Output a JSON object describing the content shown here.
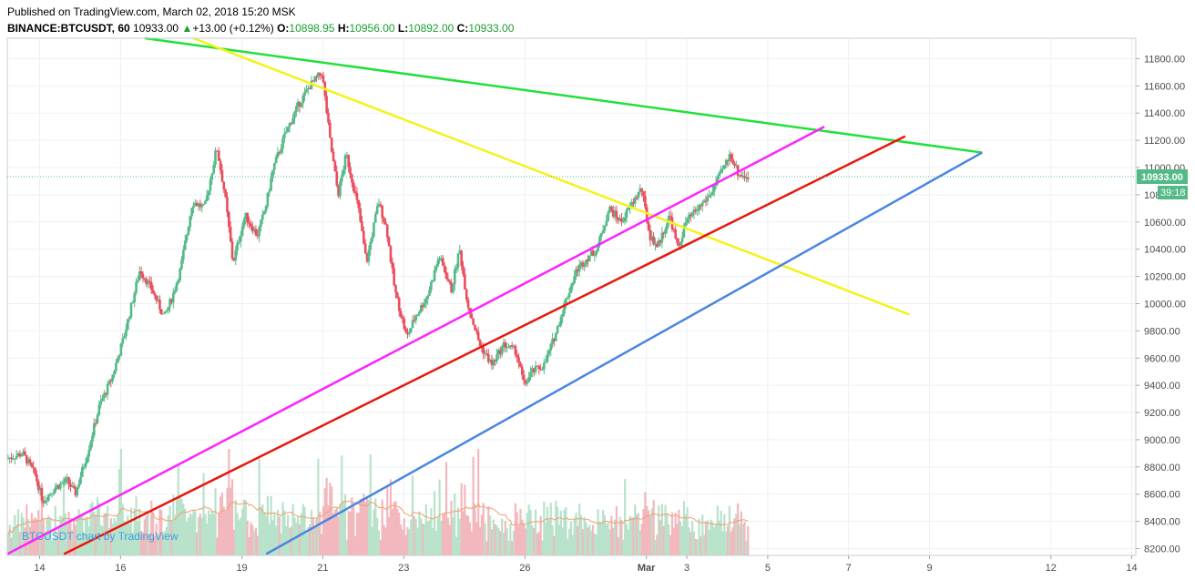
{
  "header": {
    "published": "Published on TradingView.com, March 02, 2018 15:20 MSK",
    "symbol": "BINANCE:BTCUSDT, 60",
    "last": "10933.00",
    "change": "+13.00 (+0.12%)",
    "o_label": "O:",
    "o_value": "10898.95",
    "h_label": "H:",
    "h_value": "10956.00",
    "l_label": "L:",
    "l_value": "10892.00",
    "c_label": "C:",
    "c_value": "10933.00"
  },
  "watermark": "BTCUSDT chart by TradingView",
  "colors": {
    "up": "#53b987",
    "down": "#eb4d5c",
    "green_line": "#22e03a",
    "yellow_line": "#f3f31a",
    "magenta_line": "#ff22ff",
    "red_line": "#e8170c",
    "blue_line": "#4a86e0",
    "price_tag": "#53b987",
    "vol_ma": "#f0a070"
  },
  "chart_data": {
    "type": "candlestick",
    "y_ticks": [
      "11800.00",
      "11600.00",
      "11400.00",
      "11200.00",
      "11000.00",
      "10800.00",
      "10600.00",
      "10400.00",
      "10200.00",
      "10000.00",
      "9800.00",
      "9600.00",
      "9400.00",
      "9200.00",
      "9000.00",
      "8800.00",
      "8600.00",
      "8400.00",
      "8200.00"
    ],
    "ylim": [
      8150,
      11950
    ],
    "x_ticks": [
      "14",
      "16",
      "19",
      "21",
      "23",
      "26",
      "Mar",
      "3",
      "5",
      "7",
      "9",
      "12",
      "14"
    ],
    "x_tick_days": [
      14,
      16,
      19,
      21,
      23,
      26,
      29,
      30,
      32,
      34,
      36,
      39,
      41
    ],
    "xlim": [
      13.2,
      41.1
    ],
    "last_price_label": "10933.00",
    "countdown_label": "39:18",
    "last_price": 10933,
    "price_path": [
      [
        13.2,
        8860
      ],
      [
        13.6,
        8900
      ],
      [
        13.9,
        8750
      ],
      [
        14.1,
        8550
      ],
      [
        14.4,
        8650
      ],
      [
        14.7,
        8700
      ],
      [
        14.9,
        8600
      ],
      [
        15.2,
        8900
      ],
      [
        15.5,
        9250
      ],
      [
        15.8,
        9450
      ],
      [
        16.1,
        9750
      ],
      [
        16.3,
        10000
      ],
      [
        16.5,
        10250
      ],
      [
        16.8,
        10100
      ],
      [
        17.1,
        9900
      ],
      [
        17.3,
        10050
      ],
      [
        17.5,
        10250
      ],
      [
        17.8,
        10750
      ],
      [
        18.1,
        10700
      ],
      [
        18.4,
        11150
      ],
      [
        18.6,
        10800
      ],
      [
        18.8,
        10300
      ],
      [
        19.1,
        10650
      ],
      [
        19.4,
        10500
      ],
      [
        19.6,
        10700
      ],
      [
        19.8,
        11000
      ],
      [
        20.1,
        11250
      ],
      [
        20.4,
        11450
      ],
      [
        20.7,
        11600
      ],
      [
        21.0,
        11700
      ],
      [
        21.2,
        11200
      ],
      [
        21.4,
        10800
      ],
      [
        21.6,
        11100
      ],
      [
        21.9,
        10700
      ],
      [
        22.1,
        10300
      ],
      [
        22.4,
        10750
      ],
      [
        22.6,
        10550
      ],
      [
        22.8,
        10100
      ],
      [
        23.1,
        9750
      ],
      [
        23.3,
        9900
      ],
      [
        23.6,
        10050
      ],
      [
        23.9,
        10350
      ],
      [
        24.2,
        10100
      ],
      [
        24.4,
        10400
      ],
      [
        24.6,
        10000
      ],
      [
        24.9,
        9700
      ],
      [
        25.2,
        9550
      ],
      [
        25.5,
        9700
      ],
      [
        25.8,
        9650
      ],
      [
        26.0,
        9400
      ],
      [
        26.2,
        9500
      ],
      [
        26.5,
        9550
      ],
      [
        26.8,
        9800
      ],
      [
        27.0,
        10000
      ],
      [
        27.3,
        10250
      ],
      [
        27.6,
        10350
      ],
      [
        27.8,
        10400
      ],
      [
        28.1,
        10700
      ],
      [
        28.4,
        10600
      ],
      [
        28.6,
        10700
      ],
      [
        28.9,
        10850
      ],
      [
        29.1,
        10500
      ],
      [
        29.3,
        10420
      ],
      [
        29.6,
        10650
      ],
      [
        29.8,
        10400
      ],
      [
        30.0,
        10600
      ],
      [
        30.3,
        10700
      ],
      [
        30.6,
        10800
      ],
      [
        30.9,
        10980
      ],
      [
        31.1,
        11100
      ],
      [
        31.3,
        10950
      ],
      [
        31.5,
        10933
      ]
    ],
    "volume_ylim": [
      0,
      1
    ],
    "trendlines": [
      {
        "color": "green_line",
        "points": [
          [
            16.6,
            11950
          ],
          [
            37.3,
            11110
          ]
        ]
      },
      {
        "color": "yellow_line",
        "points": [
          [
            17.8,
            11950
          ],
          [
            35.5,
            9920
          ]
        ]
      },
      {
        "color": "magenta_line",
        "points": [
          [
            13.2,
            8160
          ],
          [
            33.4,
            11300
          ]
        ]
      },
      {
        "color": "red_line",
        "points": [
          [
            14.6,
            8160
          ],
          [
            35.4,
            11230
          ]
        ]
      },
      {
        "color": "blue_line",
        "points": [
          [
            19.6,
            8160
          ],
          [
            37.3,
            11110
          ]
        ]
      }
    ]
  }
}
